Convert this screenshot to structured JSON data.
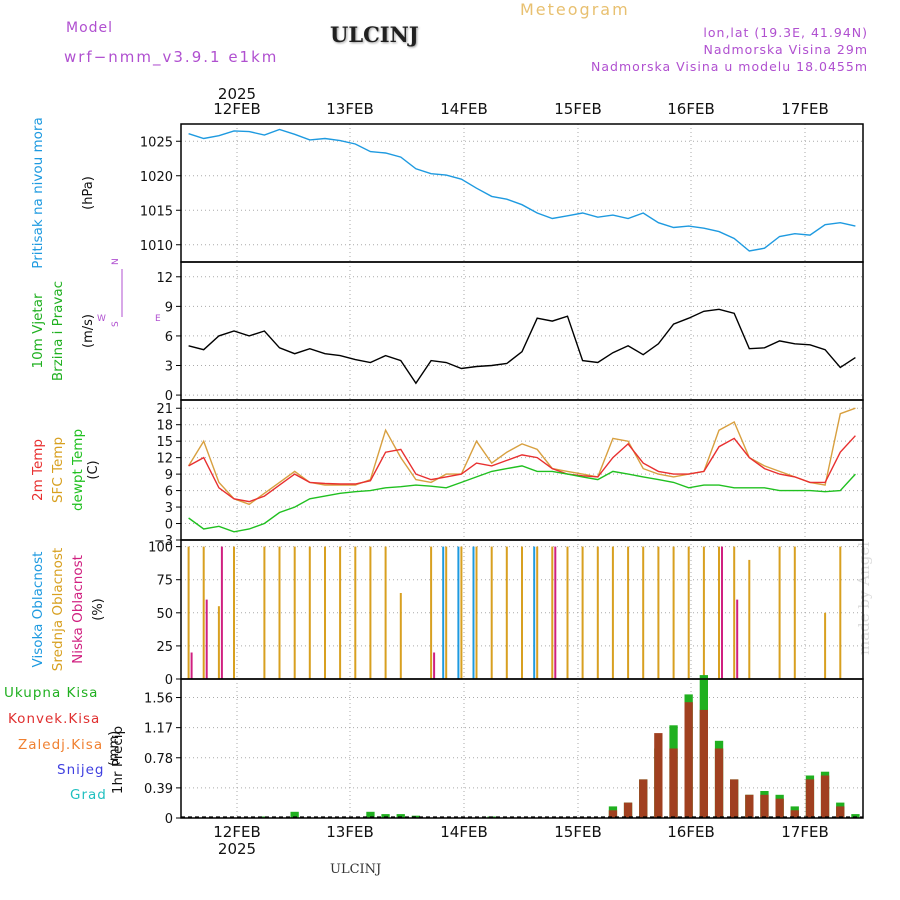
{
  "header": {
    "model_label": "Model",
    "model_version": "wrf−nmm_v3.9.1  e1km",
    "station": "ULCINJ",
    "meteogram_label": "Meteogram",
    "lonlat": "lon,lat (19.3E, 41.94N)",
    "altitude": "Nadmorska Visina 29m",
    "altitude_model": "Nadmorska Visina u modelu 18.0455m"
  },
  "footer": {
    "station": "ULCINJ",
    "signature": "made by Angel"
  },
  "chart_data": {
    "type": "meteogram",
    "time_axis": {
      "top_year": "2025",
      "bottom_year": "2025",
      "day_labels": [
        "12FEB",
        "13FEB",
        "14FEB",
        "15FEB",
        "16FEB",
        "17FEB"
      ]
    },
    "panels": [
      {
        "id": "pressure",
        "type": "line",
        "ylabel": "Pritisak na nivou mora",
        "units": "(hPa)",
        "ylim": [
          1007.5,
          1027.5
        ],
        "yticks": [
          "1010",
          "1015",
          "1020",
          "1025"
        ],
        "ytick_values": [
          1010,
          1015,
          1020,
          1025
        ],
        "series": [
          {
            "color": "#1e9ae0",
            "values": [
              1026.1,
              1025.4,
              1025.8,
              1026.5,
              1026.4,
              1025.9,
              1026.7,
              1026.0,
              1025.2,
              1025.4,
              1025.1,
              1024.6,
              1023.5,
              1023.3,
              1022.7,
              1021.0,
              1020.3,
              1020.1,
              1019.5,
              1018.2,
              1017.0,
              1016.6,
              1015.8,
              1014.6,
              1013.8,
              1014.2,
              1014.6,
              1014.0,
              1014.3,
              1013.8,
              1014.6,
              1013.2,
              1012.5,
              1012.7,
              1012.4,
              1011.9,
              1010.9,
              1009.1,
              1009.5,
              1011.2,
              1011.6,
              1011.4,
              1012.9,
              1013.2,
              1012.7
            ]
          }
        ]
      },
      {
        "id": "wind",
        "type": "line",
        "ylabel": "10m Vjetar",
        "ylabel2": "Brzina i Pravac",
        "units": "(m/s)",
        "ylim": [
          -0.5,
          13.5
        ],
        "yticks": [
          "0",
          "3",
          "6",
          "9",
          "12"
        ],
        "ytick_values": [
          0,
          3,
          6,
          9,
          12
        ],
        "compass": {
          "north": "N",
          "south": "S",
          "west": "W",
          "east": "E"
        },
        "series": [
          {
            "color": "#000000",
            "values": [
              5.0,
              4.6,
              6.0,
              6.5,
              6.0,
              6.5,
              4.8,
              4.2,
              4.7,
              4.2,
              4.0,
              3.6,
              3.3,
              4.0,
              3.5,
              1.2,
              3.5,
              3.3,
              2.7,
              2.9,
              3.0,
              3.2,
              4.4,
              7.8,
              7.5,
              8.0,
              3.5,
              3.3,
              4.3,
              5.0,
              4.1,
              5.2,
              7.2,
              7.8,
              8.5,
              8.7,
              8.3,
              4.7,
              4.8,
              5.5,
              5.2,
              5.1,
              4.6,
              2.8,
              3.8
            ]
          }
        ]
      },
      {
        "id": "temperature",
        "type": "line",
        "ylabel": "2m Temp",
        "ylabel2": "SFC Temp",
        "ylabel3": "dewpt Temp",
        "units": "(C)",
        "ylim": [
          -3,
          22.5
        ],
        "yticks": [
          "−3",
          "0",
          "3",
          "6",
          "9",
          "12",
          "15",
          "18",
          "21"
        ],
        "ytick_values": [
          -3,
          0,
          3,
          6,
          9,
          12,
          15,
          18,
          21
        ],
        "series": [
          {
            "color": "#d8a040",
            "values": [
              10.5,
              15.0,
              7.5,
              4.5,
              3.5,
              5.5,
              7.5,
              9.5,
              7.5,
              7.0,
              7.0,
              7.0,
              8.0,
              17.0,
              12.0,
              8.0,
              7.5,
              9.0,
              9.0,
              15.0,
              11.0,
              13.0,
              14.5,
              13.5,
              10.0,
              9.5,
              9.0,
              8.5,
              15.5,
              15.0,
              10.0,
              9.0,
              8.5,
              9.0,
              9.5,
              17.0,
              18.5,
              12.0,
              10.5,
              9.5,
              8.5,
              7.5,
              7.0,
              20.0,
              21.0
            ]
          },
          {
            "color": "#e83030",
            "values": [
              10.5,
              12.0,
              6.5,
              4.5,
              4.0,
              5.0,
              7.0,
              9.0,
              7.5,
              7.3,
              7.2,
              7.2,
              7.8,
              13.0,
              13.5,
              9.0,
              8.0,
              8.5,
              9.0,
              11.0,
              10.5,
              11.5,
              12.5,
              12.0,
              10.0,
              9.0,
              8.7,
              8.5,
              12.0,
              14.5,
              11.0,
              9.5,
              9.0,
              9.0,
              9.5,
              14.0,
              15.5,
              12.0,
              10.0,
              9.0,
              8.5,
              7.5,
              7.5,
              13.0,
              16.0
            ]
          },
          {
            "color": "#20c020",
            "values": [
              1.0,
              -1.0,
              -0.5,
              -1.5,
              -1.0,
              0.0,
              2.0,
              3.0,
              4.5,
              5.0,
              5.5,
              5.8,
              6.0,
              6.5,
              6.7,
              7.0,
              6.8,
              6.5,
              7.5,
              8.5,
              9.5,
              10.0,
              10.5,
              9.5,
              9.5,
              9.0,
              8.5,
              8.0,
              9.5,
              9.0,
              8.5,
              8.0,
              7.5,
              6.5,
              7.0,
              7.0,
              6.5,
              6.5,
              6.5,
              6.0,
              6.0,
              6.0,
              5.8,
              6.0,
              9.0
            ]
          }
        ]
      },
      {
        "id": "clouds",
        "type": "bar",
        "ylabel": "Visoka Oblacnost",
        "ylabel2": "Srednja Oblacnost",
        "ylabel3": "Niska Oblacnost",
        "units": "(%)",
        "ylim": [
          0,
          105
        ],
        "yticks": [
          "0",
          "25",
          "50",
          "75",
          "100"
        ],
        "ytick_values": [
          0,
          25,
          50,
          75,
          100
        ],
        "series": [
          {
            "name": "Visoka Oblacnost",
            "color": "#1e9ae0",
            "values": [
              0,
              0,
              0,
              0,
              0,
              0,
              0,
              0,
              0,
              0,
              0,
              0,
              0,
              0,
              0,
              0,
              0,
              100,
              100,
              100,
              0,
              0,
              0,
              100,
              0,
              0,
              0,
              0,
              0,
              0,
              0,
              0,
              0,
              0,
              0,
              0,
              0,
              0,
              0,
              0,
              0,
              0,
              0,
              0,
              0
            ]
          },
          {
            "name": "Srednja Oblacnost",
            "color": "#d8a020",
            "values": [
              100,
              100,
              55,
              100,
              0,
              100,
              100,
              100,
              100,
              100,
              100,
              100,
              100,
              100,
              65,
              0,
              100,
              100,
              100,
              100,
              100,
              100,
              100,
              100,
              100,
              100,
              100,
              100,
              100,
              100,
              100,
              100,
              100,
              100,
              100,
              100,
              100,
              90,
              0,
              100,
              100,
              0,
              50,
              100,
              0
            ]
          },
          {
            "name": "Niska Oblacnost",
            "color": "#d02080",
            "values": [
              20,
              60,
              100,
              0,
              0,
              0,
              0,
              0,
              0,
              0,
              0,
              0,
              0,
              0,
              0,
              0,
              20,
              0,
              0,
              0,
              0,
              0,
              0,
              0,
              100,
              0,
              0,
              0,
              0,
              0,
              0,
              0,
              0,
              0,
              0,
              100,
              60,
              0,
              0,
              0,
              0,
              0,
              0,
              0,
              0
            ]
          }
        ]
      },
      {
        "id": "precip",
        "type": "bar",
        "ylabel": "1hr Precip",
        "units": "(mm)",
        "ylim": [
          0,
          1.8
        ],
        "yticks": [
          "0",
          "0.39",
          "0.78",
          "1.17",
          "1.56"
        ],
        "ytick_values": [
          0,
          0.39,
          0.78,
          1.17,
          1.56
        ],
        "legend": [
          {
            "label": "Ukupna  Kisa",
            "color": "#20b020"
          },
          {
            "label": "Konvek.Kisa",
            "color": "#e03030"
          },
          {
            "label": "Zaledj.Kisa",
            "color": "#f08030"
          },
          {
            "label": "Snijeg",
            "color": "#4040e0"
          },
          {
            "label": "Grad",
            "color": "#20c0c0"
          }
        ],
        "series": [
          {
            "name": "Ukupna  Kisa",
            "color": "#20b020",
            "values": [
              0,
              0,
              0,
              0,
              0,
              0.02,
              0,
              0.08,
              0,
              0,
              0,
              0,
              0.08,
              0.05,
              0.05,
              0.03,
              0,
              0,
              0,
              0,
              0.02,
              0,
              0,
              0,
              0,
              0,
              0,
              0,
              0.15,
              0.2,
              0.5,
              0.9,
              1.2,
              1.6,
              1.85,
              1.0,
              0.5,
              0.3,
              0.35,
              0.3,
              0.15,
              0.55,
              0.6,
              0.2,
              0.05
            ]
          },
          {
            "name": "Konvek.Kisa",
            "color": "#a04020",
            "values": [
              0,
              0,
              0,
              0,
              0,
              0,
              0,
              0,
              0,
              0,
              0,
              0,
              0,
              0,
              0,
              0,
              0,
              0,
              0,
              0,
              0,
              0,
              0,
              0,
              0,
              0,
              0,
              0,
              0.1,
              0.2,
              0.5,
              1.1,
              0.9,
              1.5,
              1.4,
              0.9,
              0.5,
              0.3,
              0.3,
              0.25,
              0.1,
              0.5,
              0.55,
              0.15,
              0
            ]
          }
        ]
      }
    ]
  }
}
